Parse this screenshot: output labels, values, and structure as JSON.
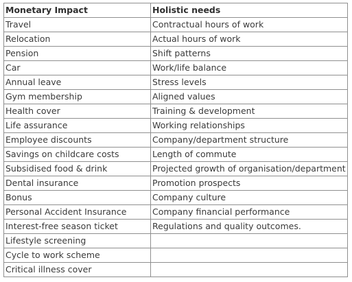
{
  "table": {
    "headers": [
      "Monetary Impact",
      "Holistic needs"
    ],
    "rows": [
      [
        "Travel",
        "Contractual hours of work"
      ],
      [
        "Relocation",
        "Actual hours of work"
      ],
      [
        "Pension",
        "Shift patterns"
      ],
      [
        "Car",
        "Work/life balance"
      ],
      [
        "Annual leave",
        "Stress levels"
      ],
      [
        "Gym membership",
        "Aligned values"
      ],
      [
        "Health cover",
        "Training & development"
      ],
      [
        "Life assurance",
        "Working relationships"
      ],
      [
        "Employee discounts",
        "Company/department structure"
      ],
      [
        "Savings on childcare costs",
        "Length of commute"
      ],
      [
        "Subsidised food & drink",
        "Projected growth of organisation/department"
      ],
      [
        "Dental insurance",
        "Promotion prospects"
      ],
      [
        "Bonus",
        "Company culture"
      ],
      [
        "Personal Accident Insurance",
        "Company financial performance"
      ],
      [
        "Interest-free season ticket",
        "Regulations and quality outcomes."
      ],
      [
        "Lifestyle screening",
        ""
      ],
      [
        "Cycle to work scheme",
        ""
      ],
      [
        "Critical illness cover",
        ""
      ]
    ]
  }
}
